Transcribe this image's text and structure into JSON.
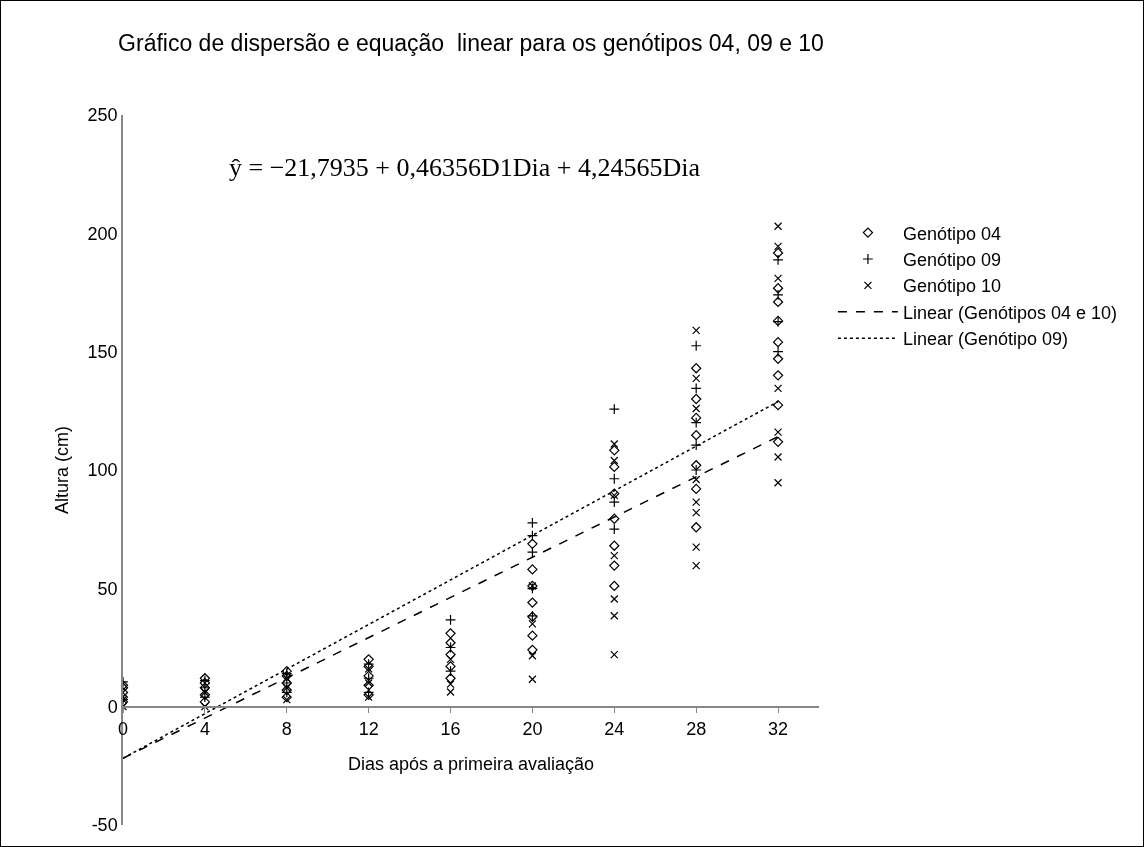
{
  "chart_data": {
    "type": "scatter",
    "title": "Gráfico de dispersão e equação  linear para os genótipos 04, 09 e 10",
    "xlabel": "Dias após a primeira avaliação",
    "ylabel": "Altura (cm)",
    "annotations": [
      "ŷ = −21,7935 + 0,46356D1Dia + 4,24565Dia"
    ],
    "xlim": [
      0,
      34
    ],
    "xticks": [
      0,
      4,
      8,
      12,
      16,
      20,
      24,
      28,
      32
    ],
    "ylim": [
      -50,
      250
    ],
    "yticks": [
      -50,
      0,
      50,
      100,
      150,
      200,
      250
    ],
    "grid": false,
    "legend": "right",
    "series": [
      {
        "name": "Genótipo 04",
        "color": "#000000",
        "marker": "diamond",
        "x": [
          0,
          0,
          0,
          0,
          0,
          4,
          4,
          4,
          4,
          4,
          8,
          8,
          8,
          8,
          8,
          12,
          12,
          12,
          12,
          12,
          16,
          16,
          16,
          16,
          16,
          20,
          20,
          20,
          20,
          20,
          20,
          20,
          24,
          24,
          24,
          24,
          24,
          24,
          24,
          28,
          28,
          28,
          28,
          28,
          28,
          28,
          32,
          32,
          32,
          32,
          32,
          32,
          32,
          32,
          32
        ],
        "values": [
          2,
          4,
          6,
          8,
          9,
          2,
          5,
          8,
          10,
          12,
          4,
          7,
          10,
          13,
          15,
          5,
          9,
          13,
          17,
          20,
          12,
          17,
          22,
          27,
          31,
          24,
          30,
          38,
          44,
          51,
          58,
          68.8,
          51,
          59.6,
          68,
          79.4,
          90,
          101.3,
          108.3,
          75.8,
          92,
          102,
          114.7,
          122,
          130,
          143,
          111.9,
          127.4,
          140,
          147,
          154,
          163,
          171,
          176.8,
          191.7
        ]
      },
      {
        "name": "Genótipo 09",
        "color": "#000000",
        "marker": "plus",
        "x": [
          0,
          0,
          4,
          4,
          4,
          8,
          8,
          8,
          12,
          12,
          12,
          16,
          16,
          16,
          20,
          20,
          20,
          20,
          20,
          24,
          24,
          24,
          24,
          28,
          28,
          28,
          28,
          28,
          32,
          32,
          32,
          32
        ],
        "values": [
          3,
          10.5,
          4,
          8,
          11,
          6,
          10,
          14,
          6,
          12,
          18,
          15,
          25,
          36.7,
          38.4,
          50,
          65.3,
          72.3,
          77.7,
          75,
          86.4,
          96.3,
          125.7,
          100,
          110.5,
          120,
          134.5,
          152.5,
          150,
          162.7,
          174,
          188.8
        ]
      },
      {
        "name": "Genótipo 10",
        "color": "#000000",
        "marker": "cross",
        "x": [
          0,
          0,
          4,
          4,
          8,
          8,
          8,
          12,
          12,
          12,
          16,
          16,
          16,
          20,
          20,
          20,
          20,
          24,
          24,
          24,
          24,
          24,
          24,
          24,
          28,
          28,
          28,
          28,
          28,
          28,
          28,
          28,
          32,
          32,
          32,
          32,
          32,
          32,
          32
        ],
        "values": [
          0,
          3,
          0,
          6,
          3,
          8,
          12,
          4,
          10,
          16,
          6.2,
          9.5,
          20,
          11.6,
          21.5,
          35,
          51,
          22,
          38.4,
          45.5,
          63.8,
          89.3,
          104,
          111,
          59.6,
          67.4,
          82,
          86.4,
          96,
          126,
          138.7,
          159,
          94.6,
          105.5,
          116,
          134.5,
          181,
          194.5,
          203
        ]
      },
      {
        "name": "Linear (Genótipos 04 e 10)",
        "type": "line",
        "color": "#000000",
        "line_style": "dashed",
        "x": [
          0,
          32
        ],
        "values": [
          -21.8,
          114.1
        ]
      },
      {
        "name": "Linear (Genótipo 09)",
        "type": "line",
        "color": "#000000",
        "line_style": "dotted",
        "x": [
          0,
          32
        ],
        "values": [
          -21.8,
          128.9
        ]
      }
    ]
  }
}
